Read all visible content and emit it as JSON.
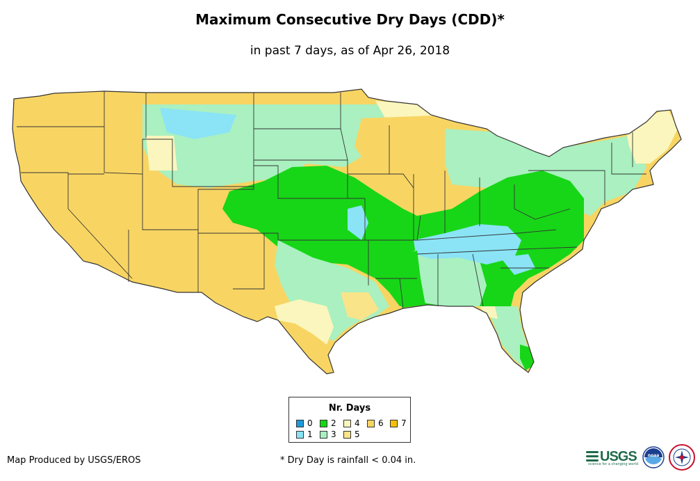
{
  "title": "Maximum Consecutive Dry Days (CDD)*",
  "subtitle": "in past 7 days, as of Apr 26, 2018",
  "legend": {
    "title": "Nr. Days",
    "items": [
      {
        "label": "0",
        "color": "#1f9ad9"
      },
      {
        "label": "1",
        "color": "#8ae4f5"
      },
      {
        "label": "2",
        "color": "#17d617"
      },
      {
        "label": "3",
        "color": "#aaf0c0"
      },
      {
        "label": "4",
        "color": "#fbf6bd"
      },
      {
        "label": "5",
        "color": "#f9e48a"
      },
      {
        "label": "6",
        "color": "#f8d563"
      },
      {
        "label": "7",
        "color": "#f7bf0d"
      }
    ]
  },
  "footer": {
    "credit": "Map Produced by USGS/EROS",
    "footnote": "* Dry Day is rainfall < 0.04 in."
  },
  "logos": {
    "usgs_text": "USGS",
    "usgs_tagline": "science for a changing world",
    "noaa_text": "noaa"
  },
  "colors": {
    "boundary": "#333333",
    "usgs_green": "#1f6b4b",
    "noaa_blue": "#1b3f8f"
  }
}
